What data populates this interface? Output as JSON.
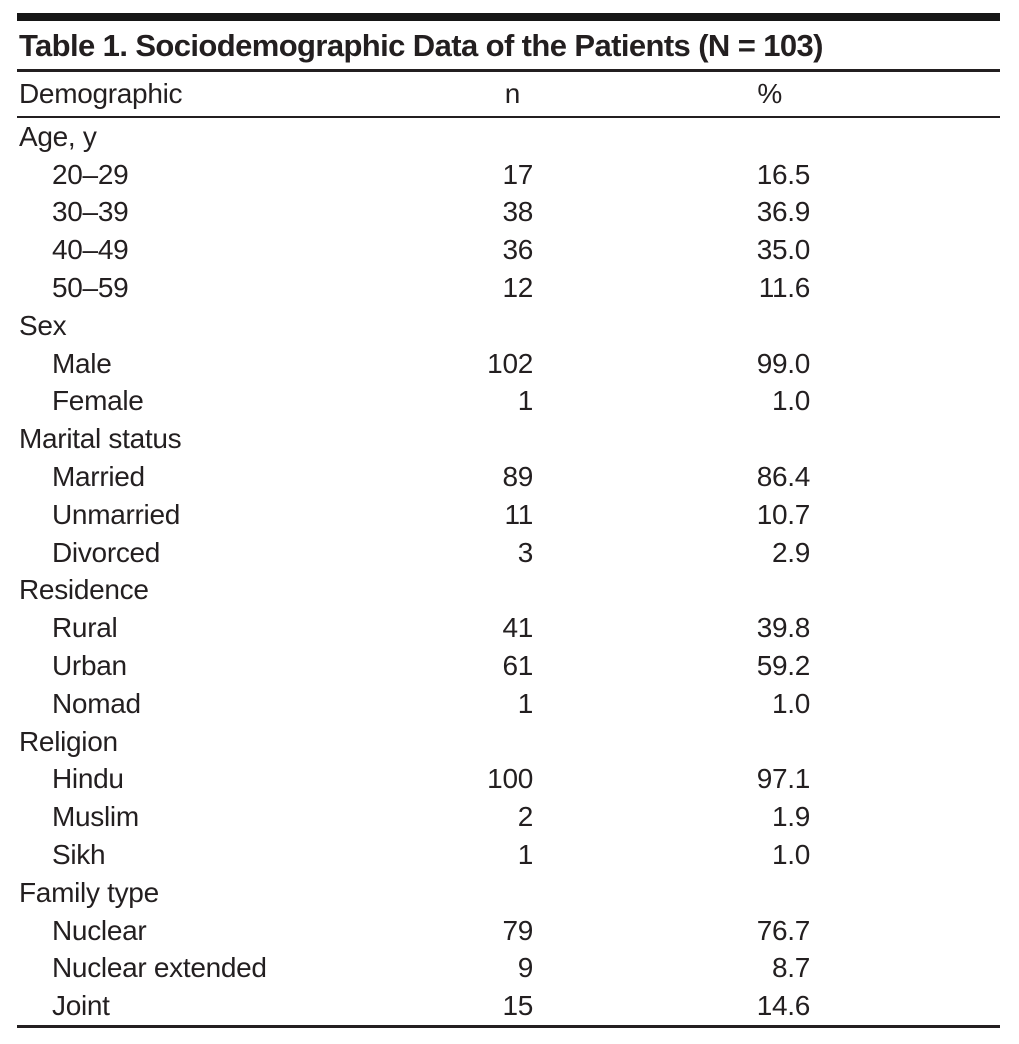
{
  "table": {
    "title": "Table 1. Sociodemographic Data of the Patients (N = 103)",
    "columns": [
      "Demographic",
      "n",
      "%"
    ],
    "sections": [
      {
        "label": "Age, y",
        "rows": [
          [
            "20–29",
            "17",
            "16.5"
          ],
          [
            "30–39",
            "38",
            "36.9"
          ],
          [
            "40–49",
            "36",
            "35.0"
          ],
          [
            "50–59",
            "12",
            "11.6"
          ]
        ]
      },
      {
        "label": "Sex",
        "rows": [
          [
            "Male",
            "102",
            "99.0"
          ],
          [
            "Female",
            "1",
            "1.0"
          ]
        ]
      },
      {
        "label": "Marital status",
        "rows": [
          [
            "Married",
            "89",
            "86.4"
          ],
          [
            "Unmarried",
            "11",
            "10.7"
          ],
          [
            "Divorced",
            "3",
            "2.9"
          ]
        ]
      },
      {
        "label": "Residence",
        "rows": [
          [
            "Rural",
            "41",
            "39.8"
          ],
          [
            "Urban",
            "61",
            "59.2"
          ],
          [
            "Nomad",
            "1",
            "1.0"
          ]
        ]
      },
      {
        "label": "Religion",
        "rows": [
          [
            "Hindu",
            "100",
            "97.1"
          ],
          [
            "Muslim",
            "2",
            "1.9"
          ],
          [
            "Sikh",
            "1",
            "1.0"
          ]
        ]
      },
      {
        "label": "Family type",
        "rows": [
          [
            "Nuclear",
            "79",
            "76.7"
          ],
          [
            "Nuclear extended",
            "9",
            "8.7"
          ],
          [
            "Joint",
            "15",
            "14.6"
          ]
        ]
      }
    ],
    "colors": {
      "text": "#231f20",
      "rule": "#231f20",
      "top_bar": "#161616",
      "background": "#ffffff"
    }
  }
}
